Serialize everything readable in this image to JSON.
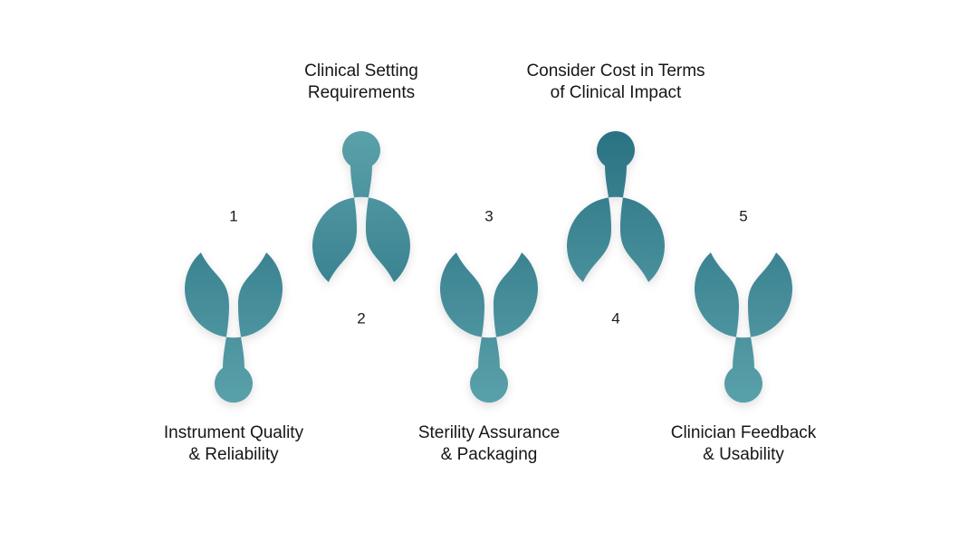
{
  "steps": [
    {
      "number": "1",
      "label_lines": [
        "Instrument Quality",
        "& Reliability"
      ],
      "label_position": "bottom",
      "orientation": "up",
      "gradient": [
        "#2a7283",
        "#5aa1aa"
      ]
    },
    {
      "number": "2",
      "label_lines": [
        "Clinical Setting",
        "Requirements"
      ],
      "label_position": "top",
      "orientation": "down",
      "gradient": [
        "#5aa1aa",
        "#2a7283"
      ]
    },
    {
      "number": "3",
      "label_lines": [
        "Sterility Assurance",
        "& Packaging"
      ],
      "label_position": "bottom",
      "orientation": "up",
      "gradient": [
        "#2a7283",
        "#5aa1aa"
      ]
    },
    {
      "number": "4",
      "label_lines": [
        "Consider Cost in Terms",
        "of Clinical Impact"
      ],
      "label_position": "top",
      "orientation": "down",
      "gradient": [
        "#2a7283",
        "#5aa1aa"
      ]
    },
    {
      "number": "5",
      "label_lines": [
        "Clinician Feedback",
        "& Usability"
      ],
      "label_position": "bottom",
      "orientation": "up",
      "gradient": [
        "#2a7283",
        "#5aa1aa"
      ]
    }
  ],
  "colors": {
    "dark_teal": "#2a7283",
    "light_teal": "#5aa1aa",
    "inner_circle": "#ffffff",
    "text": "#161616"
  }
}
